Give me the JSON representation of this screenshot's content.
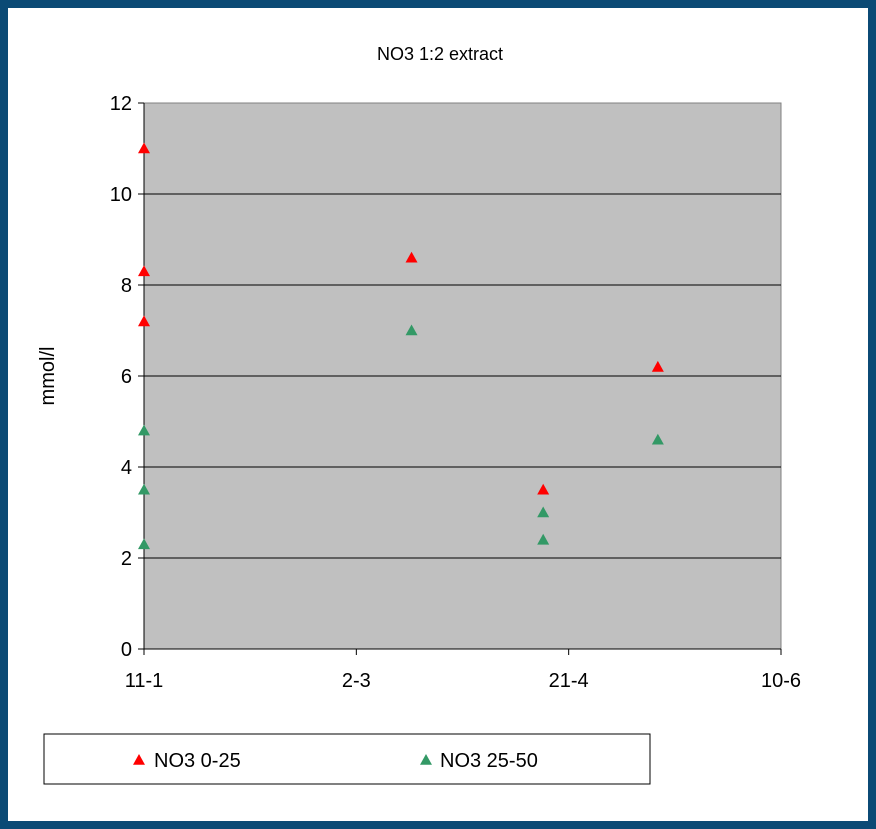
{
  "chart_data": {
    "type": "scatter",
    "title": "NO3 1:2 extract",
    "xlabel": "",
    "ylabel": "mmol/l",
    "x_ticks": [
      "11-1",
      "2-3",
      "21-4",
      "10-6"
    ],
    "x_tick_dates": [
      "2010-01-11",
      "2010-03-02",
      "2010-04-21",
      "2010-06-10"
    ],
    "ylim": [
      0,
      12
    ],
    "y_ticks": [
      0,
      2,
      4,
      6,
      8,
      10,
      12
    ],
    "grid": "horizontal",
    "legend_position": "bottom-left",
    "background_color": "#c0c0c0",
    "marker": "triangle",
    "series": [
      {
        "name": "NO3 0-25",
        "color": "#ff0000",
        "points": [
          {
            "x": "2010-01-11",
            "y": 11.0
          },
          {
            "x": "2010-01-11",
            "y": 8.3
          },
          {
            "x": "2010-01-11",
            "y": 7.2
          },
          {
            "x": "2010-03-15",
            "y": 8.6
          },
          {
            "x": "2010-04-15",
            "y": 3.5
          },
          {
            "x": "2010-05-12",
            "y": 6.2
          }
        ]
      },
      {
        "name": "NO3 25-50",
        "color": "#339966",
        "points": [
          {
            "x": "2010-01-11",
            "y": 4.8
          },
          {
            "x": "2010-01-11",
            "y": 3.5
          },
          {
            "x": "2010-01-11",
            "y": 2.3
          },
          {
            "x": "2010-03-15",
            "y": 7.0
          },
          {
            "x": "2010-04-15",
            "y": 3.0
          },
          {
            "x": "2010-04-15",
            "y": 2.4
          },
          {
            "x": "2010-05-12",
            "y": 4.6
          }
        ]
      }
    ]
  }
}
